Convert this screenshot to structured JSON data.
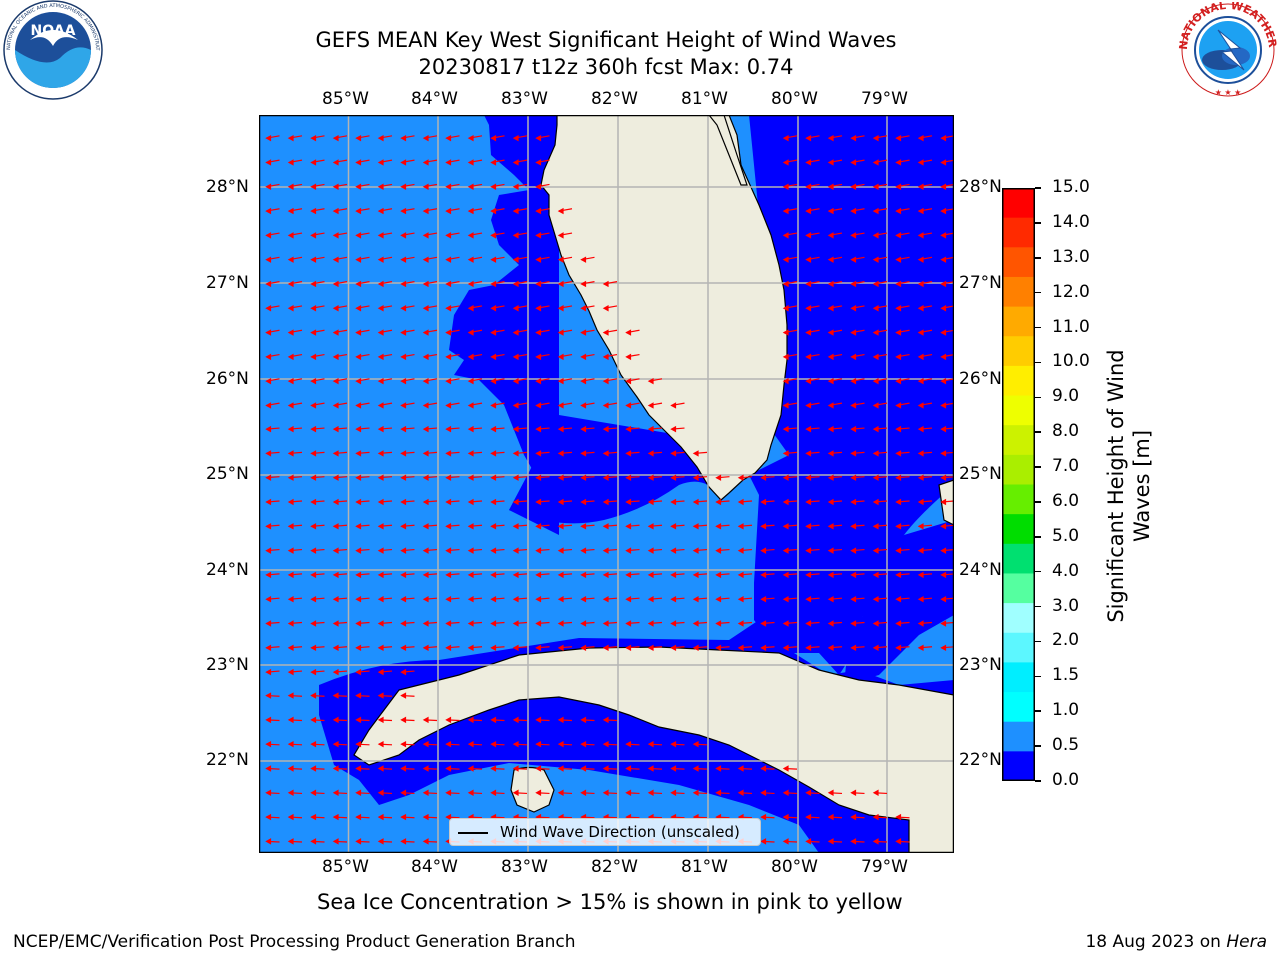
{
  "header": {
    "title_line1": "GEFS MEAN Key West Significant Height of Wind Waves",
    "title_line2": "20230817 t12z 360h fcst   Max: 0.74"
  },
  "logos": {
    "left": {
      "name": "NOAA",
      "ring_text": "NATIONAL OCEANIC AND ATMOSPHERIC ADMINISTRATION · U.S. DEPARTMENT OF COMMERCE"
    },
    "right": {
      "ring_text": "NATIONAL WEATHER SERVICE"
    }
  },
  "map": {
    "lon_labels": [
      "85°W",
      "84°W",
      "83°W",
      "82°W",
      "81°W",
      "80°W",
      "79°W"
    ],
    "lat_labels": [
      "28°N",
      "27°N",
      "26°N",
      "25°N",
      "24°N",
      "23°N",
      "22°N"
    ],
    "legend_label": "Wind Wave Direction (unscaled)",
    "colors": {
      "land": "#eeedde",
      "shade_0_0p5": "#0000ff",
      "shade_0p5_1": "#1e90ff",
      "arrow": "#ff0000",
      "grid": "#b4b4b4"
    }
  },
  "colorbar": {
    "label_line1": "Significant Height of Wind",
    "label_line2": "Waves [m]",
    "ticks": [
      "15.0",
      "14.0",
      "13.0",
      "12.0",
      "11.0",
      "10.0",
      "9.0",
      "8.0",
      "7.0",
      "6.0",
      "5.0",
      "4.0",
      "3.0",
      "2.0",
      "1.5",
      "1.0",
      "0.5",
      "0.0"
    ],
    "colors_top_to_bottom": [
      "#ff0000",
      "#ff2a00",
      "#ff5500",
      "#ff8000",
      "#ffaa00",
      "#ffcc00",
      "#ffee00",
      "#eeff00",
      "#ccf200",
      "#aaee00",
      "#66ee00",
      "#00dd00",
      "#00e070",
      "#55ffa0",
      "#a0ffff",
      "#5cf7ff",
      "#00eeff",
      "#00ffff",
      "#1e90ff",
      "#0000ff"
    ]
  },
  "notes": {
    "ice": "Sea Ice Concentration > 15% is shown in pink to yellow"
  },
  "footer": {
    "left": "NCEP/EMC/Verification Post Processing Product Generation Branch",
    "right_prefix": "18 Aug 2023 on ",
    "right_machine": "Hera"
  }
}
